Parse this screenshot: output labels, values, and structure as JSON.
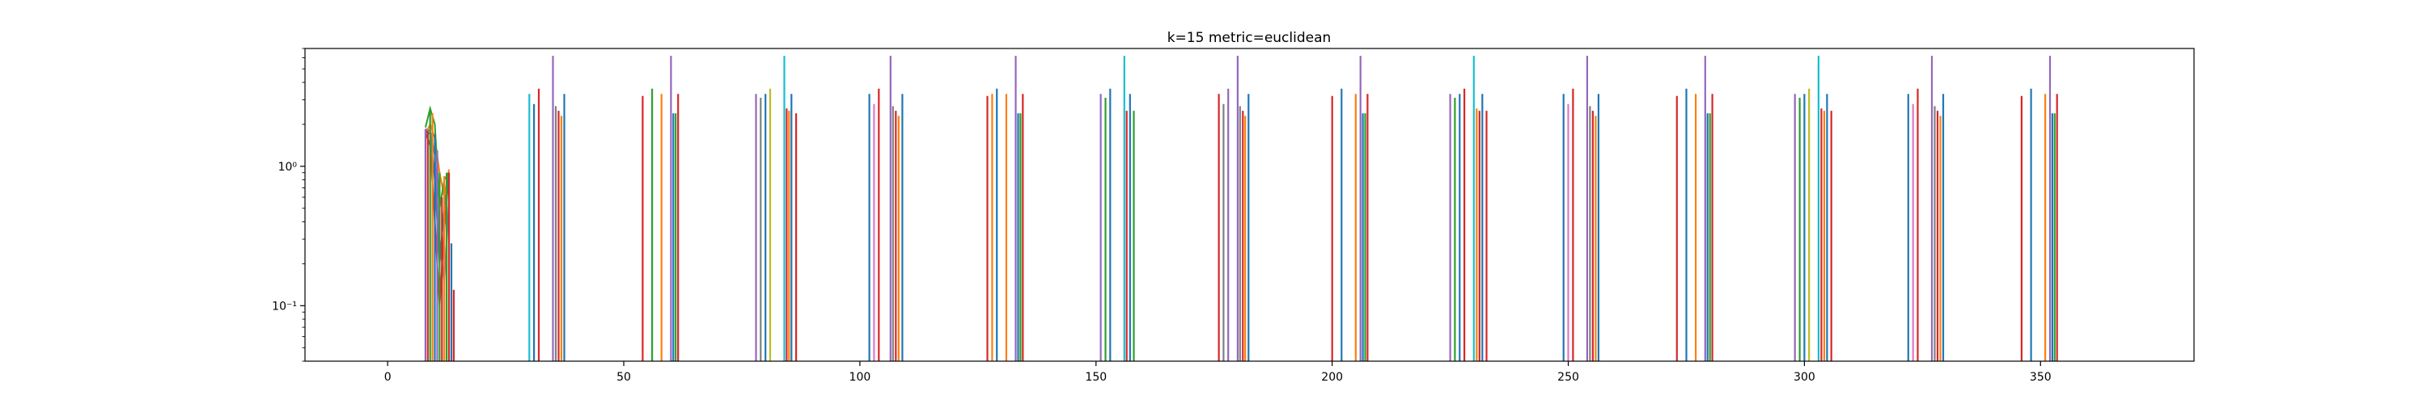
{
  "chart_data": {
    "type": "line",
    "title": "k=15 metric=euclidean",
    "xlabel": "",
    "ylabel": "",
    "xlim": [
      -17.5,
      382.5
    ],
    "ylim": [
      0.04,
      7.0
    ],
    "yscale": "log",
    "grid": false,
    "legend": "none",
    "x_ticks": [
      0,
      50,
      100,
      150,
      200,
      250,
      300,
      350
    ],
    "x_tick_labels": [
      "0",
      "50",
      "100",
      "150",
      "200",
      "250",
      "300",
      "350"
    ],
    "y_ticks": [
      0.1,
      1.0
    ],
    "y_tick_labels": [
      "10⁻¹",
      "10⁰"
    ],
    "colors": [
      "#1f77b4",
      "#ff7f0e",
      "#2ca02c",
      "#d62728",
      "#9467bd",
      "#8c564b",
      "#e377c2",
      "#7f7f7f",
      "#bcbd22",
      "#17becf"
    ],
    "spike_base": 0.04,
    "initial_curves": [
      {
        "color_index": 4,
        "points": [
          [
            8,
            1.85
          ],
          [
            9,
            1.8
          ],
          [
            10,
            1.2
          ],
          [
            11,
            0.3
          ],
          [
            12,
            0.15
          ],
          [
            13,
            0.55
          ]
        ]
      },
      {
        "color_index": 1,
        "points": [
          [
            8,
            1.7
          ],
          [
            9,
            2.0
          ],
          [
            10,
            1.6
          ],
          [
            11,
            0.9
          ],
          [
            12,
            0.6
          ],
          [
            13,
            0.95
          ]
        ]
      },
      {
        "color_index": 2,
        "points": [
          [
            8,
            1.9
          ],
          [
            9,
            2.6
          ],
          [
            10,
            2.0
          ],
          [
            11,
            0.5
          ],
          [
            12,
            0.8
          ],
          [
            13,
            0.9
          ]
        ]
      },
      {
        "color_index": 3,
        "points": [
          [
            8,
            1.75
          ],
          [
            9,
            1.4
          ],
          [
            10,
            0.4
          ],
          [
            11,
            0.1
          ],
          [
            12,
            0.35
          ],
          [
            13,
            0.9
          ]
        ]
      },
      {
        "color_index": 0,
        "points": [
          [
            8,
            1.8
          ],
          [
            9,
            1.7
          ],
          [
            10,
            0.8
          ],
          [
            11,
            0.2
          ],
          [
            12,
            0.5
          ],
          [
            13,
            0.85
          ]
        ]
      }
    ],
    "initial_spikes": [
      {
        "x": 8.0,
        "y": 1.85,
        "color_index": 4
      },
      {
        "x": 8.5,
        "y": 1.8,
        "color_index": 3
      },
      {
        "x": 9.0,
        "y": 2.6,
        "color_index": 2
      },
      {
        "x": 9.5,
        "y": 2.4,
        "color_index": 1
      },
      {
        "x": 10.0,
        "y": 1.7,
        "color_index": 0
      },
      {
        "x": 10.5,
        "y": 1.3,
        "color_index": 4
      },
      {
        "x": 11.0,
        "y": 0.9,
        "color_index": 2
      },
      {
        "x": 11.5,
        "y": 0.6,
        "color_index": 3
      },
      {
        "x": 12.0,
        "y": 0.85,
        "color_index": 1
      },
      {
        "x": 12.5,
        "y": 0.9,
        "color_index": 2
      },
      {
        "x": 13.0,
        "y": 0.9,
        "color_index": 3
      },
      {
        "x": 13.5,
        "y": 0.28,
        "color_index": 0
      },
      {
        "x": 14.0,
        "y": 0.13,
        "color_index": 3
      }
    ],
    "spike_groups": [
      {
        "start": 30,
        "spikes": [
          [
            0,
            3.3,
            9
          ],
          [
            1,
            2.8,
            0
          ],
          [
            2,
            3.6,
            3
          ],
          [
            5,
            6.2,
            4
          ],
          [
            5.6,
            2.7,
            7
          ],
          [
            6.2,
            2.5,
            3
          ],
          [
            6.8,
            2.3,
            1
          ],
          [
            7.4,
            3.3,
            0
          ]
        ]
      },
      {
        "start": 54,
        "spikes": [
          [
            0,
            3.2,
            3
          ],
          [
            2,
            3.6,
            2
          ],
          [
            4,
            3.3,
            1
          ],
          [
            6,
            6.2,
            4
          ],
          [
            6.5,
            2.4,
            0
          ],
          [
            7,
            2.4,
            2
          ],
          [
            7.5,
            3.3,
            3
          ]
        ]
      },
      {
        "start": 78,
        "spikes": [
          [
            0,
            3.3,
            4
          ],
          [
            1,
            3.1,
            7
          ],
          [
            2,
            3.3,
            0
          ],
          [
            3,
            3.6,
            8
          ],
          [
            6,
            6.2,
            9
          ],
          [
            6.5,
            2.6,
            3
          ],
          [
            7,
            2.5,
            1
          ],
          [
            7.5,
            3.3,
            0
          ],
          [
            8.5,
            2.4,
            3
          ]
        ]
      },
      {
        "start": 102,
        "spikes": [
          [
            0,
            3.3,
            0
          ],
          [
            1,
            2.8,
            6
          ],
          [
            2,
            3.6,
            3
          ],
          [
            4.5,
            6.2,
            4
          ],
          [
            5,
            2.7,
            7
          ],
          [
            5.6,
            2.5,
            3
          ],
          [
            6.2,
            2.3,
            1
          ],
          [
            7,
            3.3,
            0
          ]
        ]
      },
      {
        "start": 127,
        "spikes": [
          [
            0,
            3.2,
            3
          ],
          [
            1,
            3.3,
            1
          ],
          [
            2,
            3.6,
            0
          ],
          [
            4,
            3.3,
            1
          ],
          [
            6,
            6.2,
            4
          ],
          [
            6.5,
            2.4,
            0
          ],
          [
            7,
            2.4,
            2
          ],
          [
            7.5,
            3.3,
            3
          ]
        ]
      },
      {
        "start": 151,
        "spikes": [
          [
            0,
            3.3,
            4
          ],
          [
            1,
            3.1,
            2
          ],
          [
            2,
            3.6,
            0
          ],
          [
            5,
            6.2,
            9
          ],
          [
            5.5,
            2.5,
            3
          ],
          [
            6.2,
            3.3,
            0
          ],
          [
            7,
            2.5,
            2
          ]
        ]
      },
      {
        "start": 176,
        "spikes": [
          [
            0,
            3.3,
            3
          ],
          [
            1,
            2.8,
            7
          ],
          [
            2,
            3.6,
            4
          ],
          [
            4,
            6.2,
            4
          ],
          [
            4.5,
            2.7,
            7
          ],
          [
            5.1,
            2.5,
            3
          ],
          [
            5.6,
            2.3,
            1
          ],
          [
            6.3,
            3.3,
            0
          ]
        ]
      },
      {
        "start": 200,
        "spikes": [
          [
            0,
            3.2,
            3
          ],
          [
            2,
            3.6,
            0
          ],
          [
            5,
            3.3,
            1
          ],
          [
            6,
            6.2,
            4
          ],
          [
            6.5,
            2.4,
            0
          ],
          [
            7,
            2.4,
            2
          ],
          [
            7.5,
            3.3,
            3
          ]
        ]
      },
      {
        "start": 225,
        "spikes": [
          [
            0,
            3.3,
            4
          ],
          [
            1,
            3.1,
            2
          ],
          [
            2,
            3.3,
            0
          ],
          [
            3,
            3.6,
            3
          ],
          [
            5,
            6.2,
            9
          ],
          [
            5.6,
            2.6,
            1
          ],
          [
            6.2,
            2.5,
            3
          ],
          [
            6.8,
            3.3,
            0
          ],
          [
            7.7,
            2.5,
            3
          ]
        ]
      },
      {
        "start": 249,
        "spikes": [
          [
            0,
            3.3,
            0
          ],
          [
            1,
            2.8,
            6
          ],
          [
            2,
            3.6,
            3
          ],
          [
            5,
            6.2,
            4
          ],
          [
            5.6,
            2.7,
            7
          ],
          [
            6.2,
            2.5,
            3
          ],
          [
            6.8,
            2.3,
            1
          ],
          [
            7.4,
            3.3,
            0
          ]
        ]
      },
      {
        "start": 273,
        "spikes": [
          [
            0,
            3.2,
            3
          ],
          [
            2,
            3.6,
            0
          ],
          [
            4,
            3.3,
            1
          ],
          [
            6,
            6.2,
            4
          ],
          [
            6.5,
            2.4,
            0
          ],
          [
            7,
            2.4,
            2
          ],
          [
            7.5,
            3.3,
            3
          ]
        ]
      },
      {
        "start": 298,
        "spikes": [
          [
            0,
            3.3,
            4
          ],
          [
            1,
            3.1,
            2
          ],
          [
            2,
            3.3,
            0
          ],
          [
            3,
            3.6,
            8
          ],
          [
            5,
            6.2,
            9
          ],
          [
            5.6,
            2.6,
            3
          ],
          [
            6.2,
            2.5,
            1
          ],
          [
            6.8,
            3.3,
            0
          ],
          [
            7.7,
            2.5,
            3
          ]
        ]
      },
      {
        "start": 322,
        "spikes": [
          [
            0,
            3.3,
            0
          ],
          [
            1,
            2.8,
            6
          ],
          [
            2,
            3.6,
            3
          ],
          [
            5,
            6.2,
            4
          ],
          [
            5.6,
            2.7,
            7
          ],
          [
            6.2,
            2.5,
            3
          ],
          [
            6.8,
            2.3,
            1
          ],
          [
            7.4,
            3.3,
            0
          ]
        ]
      },
      {
        "start": 346,
        "spikes": [
          [
            0,
            3.2,
            3
          ],
          [
            2,
            3.6,
            0
          ],
          [
            5,
            3.3,
            1
          ],
          [
            6,
            6.2,
            4
          ],
          [
            6.5,
            2.4,
            0
          ],
          [
            7,
            2.4,
            2
          ],
          [
            7.5,
            3.3,
            3
          ]
        ]
      }
    ]
  }
}
